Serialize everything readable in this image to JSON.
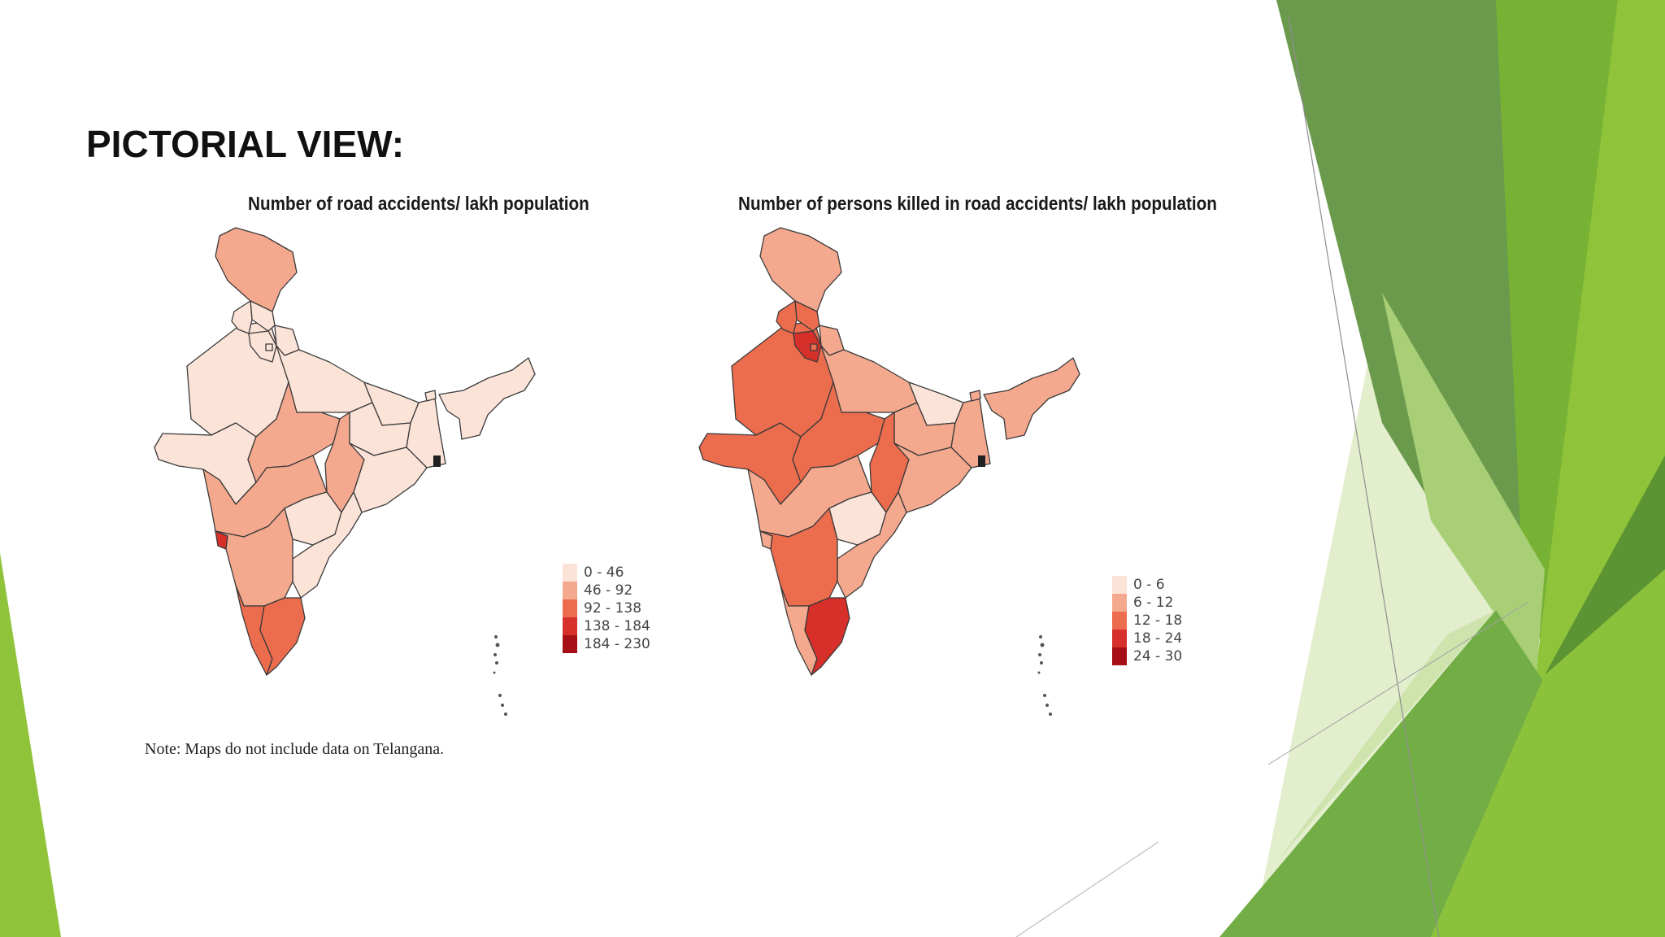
{
  "slide": {
    "title": "PICTORIAL VIEW:",
    "note": "Note: Maps do not include data on Telangana."
  },
  "colors": {
    "class1": "#fbe3d8",
    "class2": "#f4a88e",
    "class3": "#ec6c4e",
    "class4": "#d7302a",
    "class5": "#a50f15",
    "border": "#3a3a3a",
    "green_dark": "#6a9a4e",
    "green_mid": "#7bb33a",
    "green_light": "#c7de9f",
    "green_bright": "#8fc43a"
  },
  "maps": [
    {
      "id": "accidents",
      "title": "Number of road accidents/ lakh population",
      "legend": [
        {
          "label": "0 - 46",
          "color": "#fbe3d8"
        },
        {
          "label": "46 - 92",
          "color": "#f4a88e"
        },
        {
          "label": "92 - 138",
          "color": "#ec6c4e"
        },
        {
          "label": "138 - 184",
          "color": "#d7302a"
        },
        {
          "label": "184 - 230",
          "color": "#a50f15"
        }
      ],
      "region_classes": {
        "jk": 2,
        "hp": 1,
        "pb": 1,
        "uk": 1,
        "hr": 1,
        "dl": 1,
        "rj": 1,
        "up": 1,
        "br": 1,
        "gj": 1,
        "mp": 2,
        "cg": 2,
        "jh": 1,
        "wb": 1,
        "od": 1,
        "mh": 2,
        "tg": 1,
        "ap": 1,
        "ka": 2,
        "goa": 4,
        "kl": 3,
        "tn": 3,
        "ne": 1,
        "sk": 1
      }
    },
    {
      "id": "killed",
      "title": "Number of persons killed in road accidents/ lakh population",
      "legend": [
        {
          "label": "0 - 6",
          "color": "#fbe3d8"
        },
        {
          "label": "6 - 12",
          "color": "#f4a88e"
        },
        {
          "label": "12 - 18",
          "color": "#ec6c4e"
        },
        {
          "label": "18 - 24",
          "color": "#d7302a"
        },
        {
          "label": "24 - 30",
          "color": "#a50f15"
        }
      ],
      "region_classes": {
        "jk": 2,
        "hp": 3,
        "pb": 3,
        "uk": 2,
        "hr": 4,
        "dl": 3,
        "rj": 3,
        "up": 2,
        "br": 1,
        "gj": 3,
        "mp": 3,
        "cg": 3,
        "jh": 2,
        "wb": 2,
        "od": 2,
        "mh": 2,
        "tg": 1,
        "ap": 2,
        "ka": 3,
        "goa": 2,
        "kl": 2,
        "tn": 4,
        "ne": 2,
        "sk": 2
      }
    }
  ]
}
